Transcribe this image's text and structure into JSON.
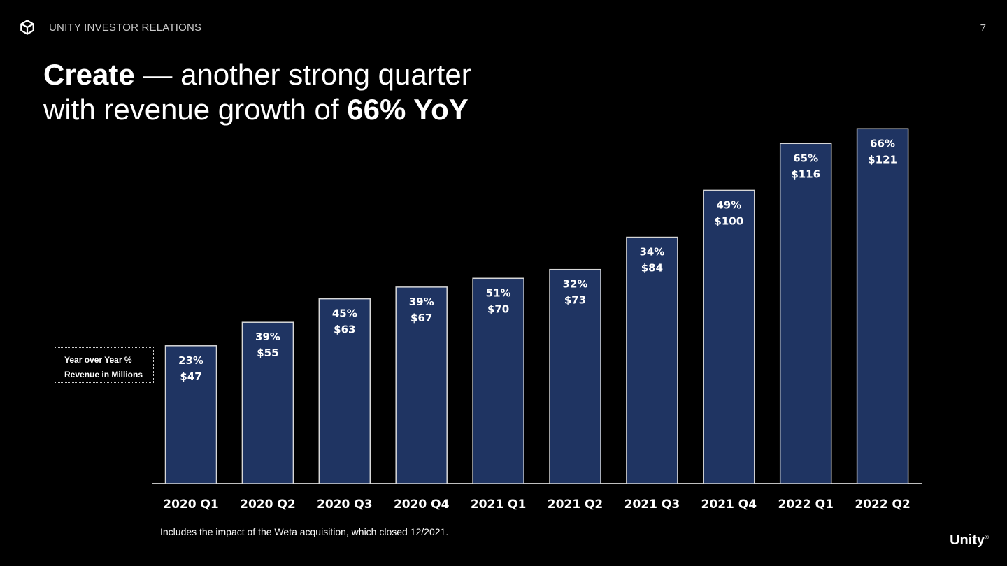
{
  "header": {
    "section": "UNITY INVESTOR RELATIONS",
    "page_number": "7"
  },
  "title": {
    "bold1": "Create",
    "normal1": " — another strong quarter",
    "normal2": "with revenue growth of ",
    "bold2": "66% YoY"
  },
  "legend": {
    "line1": "Year over Year  %",
    "line2": "Revenue in Millions"
  },
  "chart_data": {
    "type": "bar",
    "title": "",
    "xlabel": "",
    "ylabel": "Revenue in Millions",
    "ylim": [
      0,
      130
    ],
    "categories": [
      "2020 Q1",
      "2020 Q2",
      "2020 Q3",
      "2020 Q4",
      "2021 Q1",
      "2021 Q2",
      "2021 Q3",
      "2021 Q4",
      "2022 Q1",
      "2022 Q2"
    ],
    "values": [
      47,
      55,
      63,
      67,
      70,
      73,
      84,
      100,
      116,
      121
    ],
    "yoy_labels": [
      "23%",
      "39%",
      "45%",
      "39%",
      "51%",
      "32%",
      "34%",
      "49%",
      "65%",
      "66%"
    ],
    "value_labels": [
      "$47",
      "$55",
      "$63",
      "$67",
      "$70",
      "$73",
      "$84",
      "$100",
      "$116",
      "$121"
    ],
    "colors": {
      "bar": "#1f3462",
      "bar_border": "#d7d7d7",
      "axis": "#bfbfbf"
    }
  },
  "footnote": "Includes the impact of the Weta acquisition, which closed 12/2021.",
  "brand": {
    "name": "Unity",
    "mark": "®"
  }
}
